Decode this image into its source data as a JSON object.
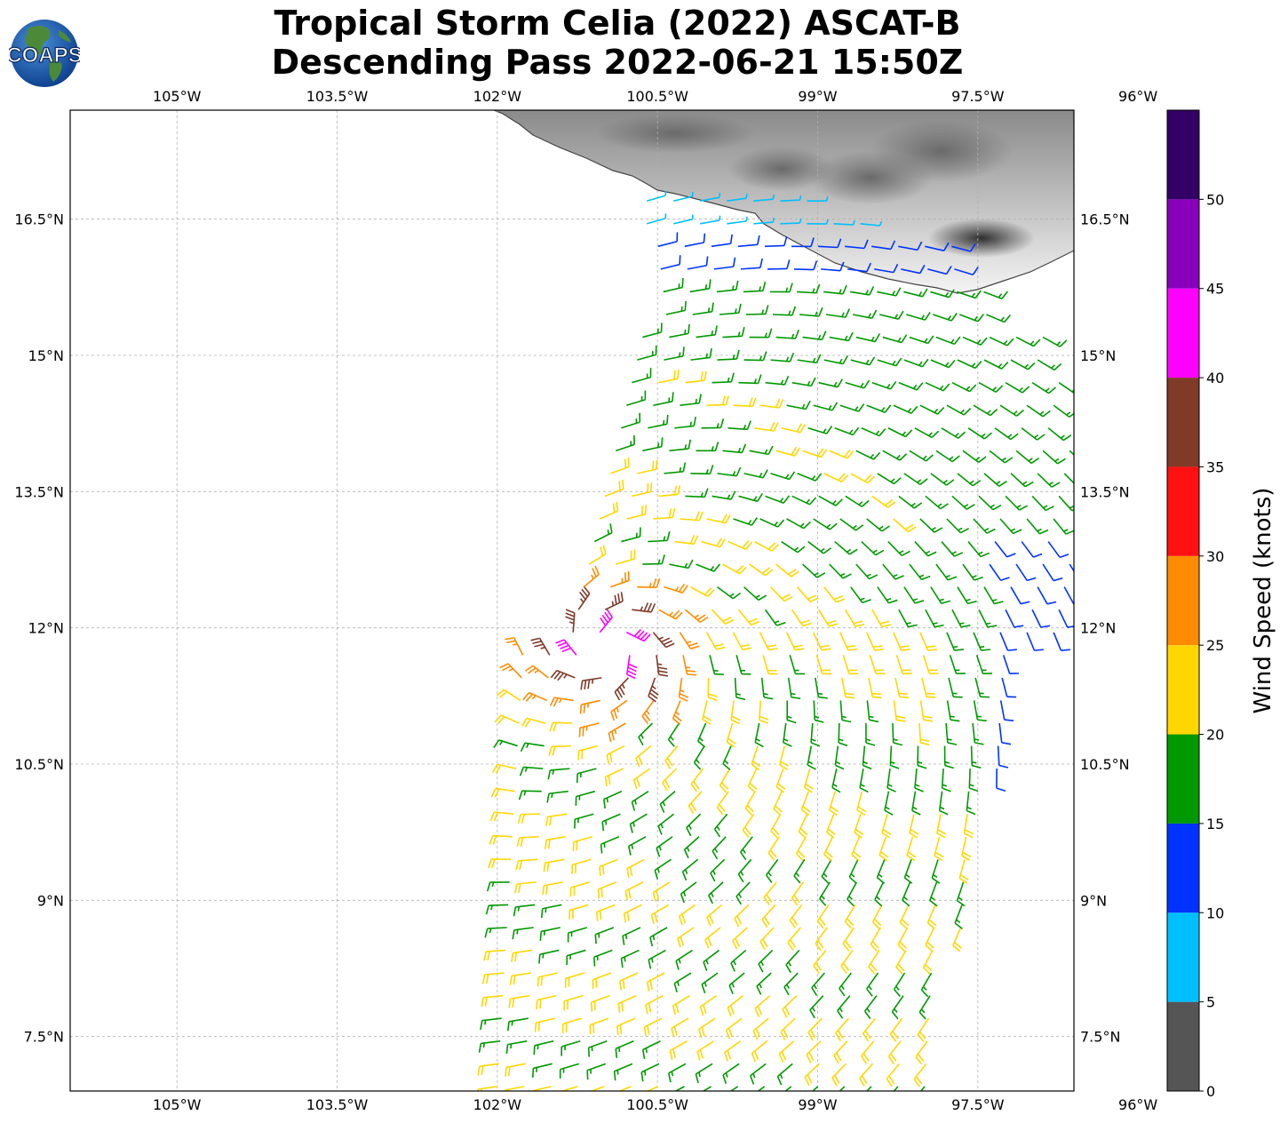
{
  "title": {
    "line1": "Tropical Storm Celia (2022) ASCAT-B",
    "line2": "Descending Pass 2022-06-21 15:50Z"
  },
  "logo": {
    "text": "COAPS",
    "icon": "globe-logo"
  },
  "map": {
    "lon_range": [
      -106,
      -96.6
    ],
    "lat_range": [
      6.9,
      17.7
    ],
    "lon_ticks": [
      {
        "value": -105,
        "label": "105°W"
      },
      {
        "value": -103.5,
        "label": "103.5°W"
      },
      {
        "value": -102,
        "label": "102°W"
      },
      {
        "value": -100.5,
        "label": "100.5°W"
      },
      {
        "value": -99,
        "label": "99°W"
      },
      {
        "value": -97.5,
        "label": "97.5°W"
      },
      {
        "value": -96,
        "label": "96°W"
      }
    ],
    "lat_ticks": [
      {
        "value": 16.5,
        "label": "16.5°N"
      },
      {
        "value": 15,
        "label": "15°N"
      },
      {
        "value": 13.5,
        "label": "13.5°N"
      },
      {
        "value": 12,
        "label": "12°N"
      },
      {
        "value": 10.5,
        "label": "10.5°N"
      },
      {
        "value": 9,
        "label": "9°N"
      },
      {
        "value": 7.5,
        "label": "7.5°N"
      }
    ],
    "storm_center": {
      "lon": -100.95,
      "lat": 11.8
    },
    "gridlines": true,
    "land": "Mexico coastline with grayscale terrain"
  },
  "colorbar": {
    "label": "Wind Speed (knots)",
    "bins": [
      {
        "min": 0,
        "max": 5,
        "color": "#555555"
      },
      {
        "min": 5,
        "max": 10,
        "color": "#00bfff"
      },
      {
        "min": 10,
        "max": 15,
        "color": "#0033ff"
      },
      {
        "min": 15,
        "max": 20,
        "color": "#009900"
      },
      {
        "min": 20,
        "max": 25,
        "color": "#ffd700"
      },
      {
        "min": 25,
        "max": 30,
        "color": "#ff8c00"
      },
      {
        "min": 30,
        "max": 35,
        "color": "#ff1111"
      },
      {
        "min": 35,
        "max": 40,
        "color": "#7f3a28"
      },
      {
        "min": 40,
        "max": 45,
        "color": "#ff00ff"
      },
      {
        "min": 45,
        "max": 50,
        "color": "#8800bb"
      },
      {
        "min": 50,
        "max": 55,
        "color": "#330066"
      }
    ],
    "tick_labels": [
      "0",
      "5",
      "10",
      "15",
      "20",
      "25",
      "30",
      "35",
      "40",
      "45",
      "50"
    ]
  }
}
